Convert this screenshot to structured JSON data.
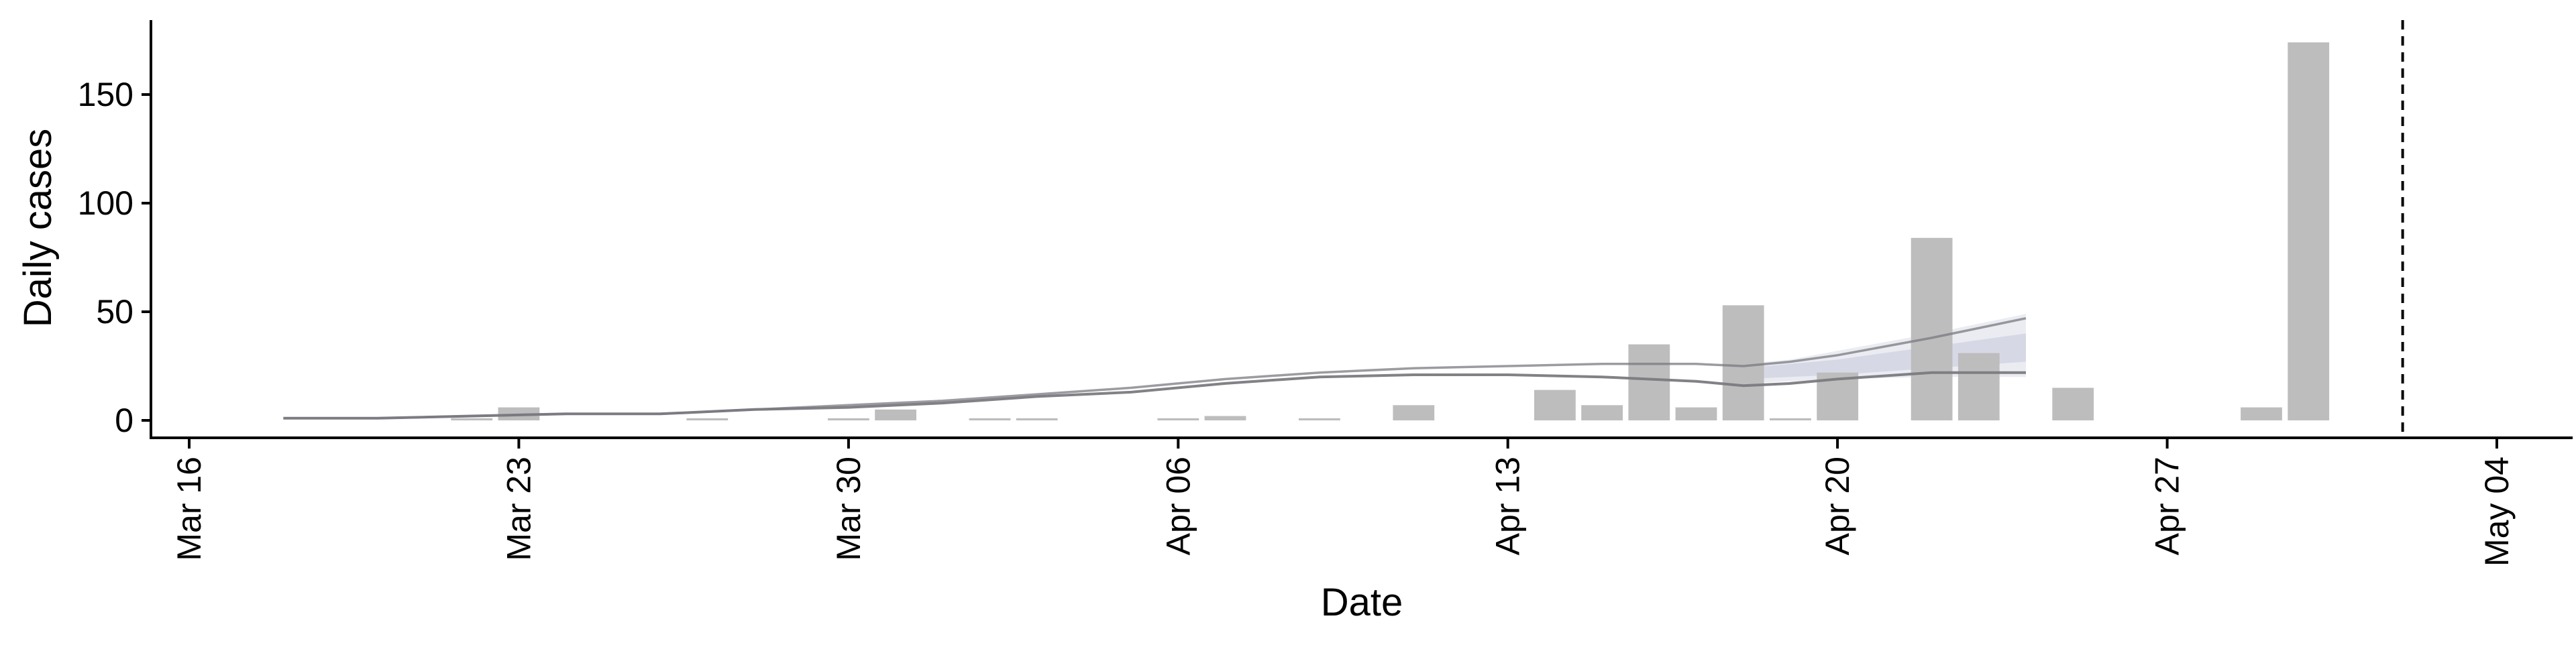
{
  "chart_data": {
    "type": "bar",
    "title": "",
    "xlabel": "Date",
    "ylabel": "Daily cases",
    "x_ticks": [
      "Mar 16",
      "Mar 23",
      "Mar 30",
      "Apr 06",
      "Apr 13",
      "Apr 20",
      "Apr 27",
      "May 04"
    ],
    "y_ticks": [
      "0",
      "50",
      "100",
      "150"
    ],
    "x_range": [
      "2020-03-16",
      "2020-05-04"
    ],
    "ylim": [
      -8,
      182
    ],
    "grid": false,
    "legend": "none",
    "bar_color": "#bdbdbd",
    "line_color": "#7a7a80",
    "band_color": "#c4c8da",
    "reference_line": {
      "date": "2020-05-02",
      "style": "dashed"
    },
    "bars": [
      {
        "date": "2020-03-22",
        "value": 1
      },
      {
        "date": "2020-03-23",
        "value": 6
      },
      {
        "date": "2020-03-27",
        "value": 1
      },
      {
        "date": "2020-03-30",
        "value": 1
      },
      {
        "date": "2020-03-31",
        "value": 5
      },
      {
        "date": "2020-04-02",
        "value": 1
      },
      {
        "date": "2020-04-03",
        "value": 1
      },
      {
        "date": "2020-04-06",
        "value": 1
      },
      {
        "date": "2020-04-07",
        "value": 2
      },
      {
        "date": "2020-04-09",
        "value": 1
      },
      {
        "date": "2020-04-11",
        "value": 7
      },
      {
        "date": "2020-04-14",
        "value": 14
      },
      {
        "date": "2020-04-15",
        "value": 7
      },
      {
        "date": "2020-04-16",
        "value": 35
      },
      {
        "date": "2020-04-17",
        "value": 6
      },
      {
        "date": "2020-04-18",
        "value": 53
      },
      {
        "date": "2020-04-19",
        "value": 1
      },
      {
        "date": "2020-04-20",
        "value": 22
      },
      {
        "date": "2020-04-22",
        "value": 84
      },
      {
        "date": "2020-04-23",
        "value": 31
      },
      {
        "date": "2020-04-25",
        "value": 15
      },
      {
        "date": "2020-04-29",
        "value": 6
      },
      {
        "date": "2020-04-30",
        "value": 174
      }
    ],
    "series": [
      {
        "type": "line",
        "points": [
          {
            "date": "2020-03-18",
            "value": 1
          },
          {
            "date": "2020-03-20",
            "value": 1
          },
          {
            "date": "2020-03-22",
            "value": 2
          },
          {
            "date": "2020-03-24",
            "value": 3
          },
          {
            "date": "2020-03-26",
            "value": 3
          },
          {
            "date": "2020-03-28",
            "value": 5
          },
          {
            "date": "2020-03-30",
            "value": 6
          },
          {
            "date": "2020-04-01",
            "value": 8
          },
          {
            "date": "2020-04-03",
            "value": 11
          },
          {
            "date": "2020-04-05",
            "value": 13
          },
          {
            "date": "2020-04-07",
            "value": 17
          },
          {
            "date": "2020-04-09",
            "value": 20
          },
          {
            "date": "2020-04-11",
            "value": 21
          },
          {
            "date": "2020-04-13",
            "value": 21
          },
          {
            "date": "2020-04-15",
            "value": 20
          },
          {
            "date": "2020-04-17",
            "value": 18
          },
          {
            "date": "2020-04-18",
            "value": 16
          },
          {
            "date": "2020-04-19",
            "value": 17
          },
          {
            "date": "2020-04-20",
            "value": 19
          },
          {
            "date": "2020-04-22",
            "value": 22
          },
          {
            "date": "2020-04-24",
            "value": 22
          }
        ]
      },
      {
        "type": "line",
        "points": [
          {
            "date": "2020-03-18",
            "value": 1
          },
          {
            "date": "2020-03-20",
            "value": 1
          },
          {
            "date": "2020-03-22",
            "value": 2
          },
          {
            "date": "2020-03-24",
            "value": 3
          },
          {
            "date": "2020-03-26",
            "value": 3
          },
          {
            "date": "2020-03-28",
            "value": 5
          },
          {
            "date": "2020-03-30",
            "value": 7
          },
          {
            "date": "2020-04-01",
            "value": 9
          },
          {
            "date": "2020-04-03",
            "value": 12
          },
          {
            "date": "2020-04-05",
            "value": 15
          },
          {
            "date": "2020-04-07",
            "value": 19
          },
          {
            "date": "2020-04-09",
            "value": 22
          },
          {
            "date": "2020-04-11",
            "value": 24
          },
          {
            "date": "2020-04-13",
            "value": 25
          },
          {
            "date": "2020-04-15",
            "value": 26
          },
          {
            "date": "2020-04-17",
            "value": 26
          },
          {
            "date": "2020-04-18",
            "value": 25
          },
          {
            "date": "2020-04-19",
            "value": 27
          },
          {
            "date": "2020-04-20",
            "value": 30
          },
          {
            "date": "2020-04-22",
            "value": 38
          },
          {
            "date": "2020-04-24",
            "value": 47
          }
        ]
      }
    ],
    "bands": [
      {
        "points": [
          {
            "date": "2020-04-18",
            "low": 17,
            "high": 26
          },
          {
            "date": "2020-04-19",
            "low": 18,
            "high": 28
          },
          {
            "date": "2020-04-20",
            "low": 19,
            "high": 32
          },
          {
            "date": "2020-04-22",
            "low": 20,
            "high": 40
          },
          {
            "date": "2020-04-24",
            "low": 20,
            "high": 49
          }
        ]
      },
      {
        "points": [
          {
            "date": "2020-04-18",
            "low": 19,
            "high": 24
          },
          {
            "date": "2020-04-19",
            "low": 20,
            "high": 26
          },
          {
            "date": "2020-04-20",
            "low": 21,
            "high": 28
          },
          {
            "date": "2020-04-22",
            "low": 24,
            "high": 34
          },
          {
            "date": "2020-04-24",
            "low": 27,
            "high": 40
          }
        ]
      }
    ]
  }
}
